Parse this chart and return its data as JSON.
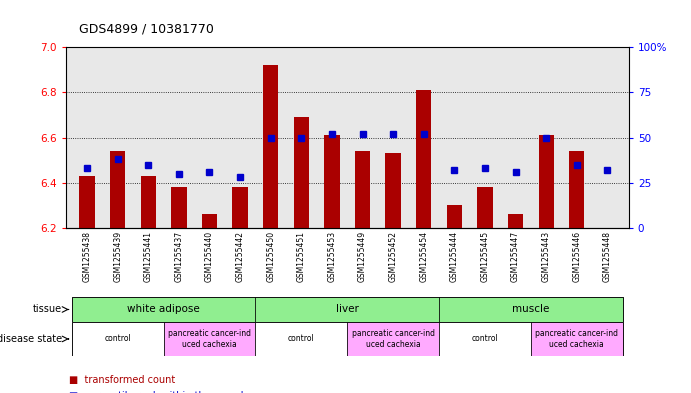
{
  "title": "GDS4899 / 10381770",
  "samples": [
    "GSM1255438",
    "GSM1255439",
    "GSM1255441",
    "GSM1255437",
    "GSM1255440",
    "GSM1255442",
    "GSM1255450",
    "GSM1255451",
    "GSM1255453",
    "GSM1255449",
    "GSM1255452",
    "GSM1255454",
    "GSM1255444",
    "GSM1255445",
    "GSM1255447",
    "GSM1255443",
    "GSM1255446",
    "GSM1255448"
  ],
  "transformed_count": [
    6.43,
    6.54,
    6.43,
    6.38,
    6.26,
    6.38,
    6.92,
    6.69,
    6.61,
    6.54,
    6.53,
    6.81,
    6.3,
    6.38,
    6.26,
    6.61,
    6.54,
    6.2
  ],
  "percentile_rank": [
    33,
    38,
    35,
    30,
    31,
    28,
    50,
    50,
    52,
    52,
    52,
    52,
    32,
    33,
    31,
    50,
    35,
    32
  ],
  "ylim_left": [
    6.2,
    7.0
  ],
  "ylim_right": [
    0,
    100
  ],
  "yticks_left": [
    6.2,
    6.4,
    6.6,
    6.8,
    7.0
  ],
  "yticks_right": [
    0,
    25,
    50,
    75,
    100
  ],
  "bar_color": "#aa0000",
  "dot_color": "#0000cc",
  "bar_bottom": 6.2,
  "tissue_groups": [
    {
      "label": "white adipose",
      "start": 0,
      "end": 6
    },
    {
      "label": "liver",
      "start": 6,
      "end": 12
    },
    {
      "label": "muscle",
      "start": 12,
      "end": 18
    }
  ],
  "disease_groups": [
    {
      "label": "control",
      "start": 0,
      "end": 3,
      "pancreatic": false
    },
    {
      "label": "pancreatic cancer-ind\nuced cachexia",
      "start": 3,
      "end": 6,
      "pancreatic": true
    },
    {
      "label": "control",
      "start": 6,
      "end": 9,
      "pancreatic": false
    },
    {
      "label": "pancreatic cancer-ind\nuced cachexia",
      "start": 9,
      "end": 12,
      "pancreatic": true
    },
    {
      "label": "control",
      "start": 12,
      "end": 15,
      "pancreatic": false
    },
    {
      "label": "pancreatic cancer-ind\nuced cachexia",
      "start": 15,
      "end": 18,
      "pancreatic": true
    }
  ],
  "tissue_color": "#90ee90",
  "control_color": "#ffffff",
  "cachexia_color": "#ffaaff",
  "plot_bg": "#e8e8e8",
  "grid_style": "dotted"
}
